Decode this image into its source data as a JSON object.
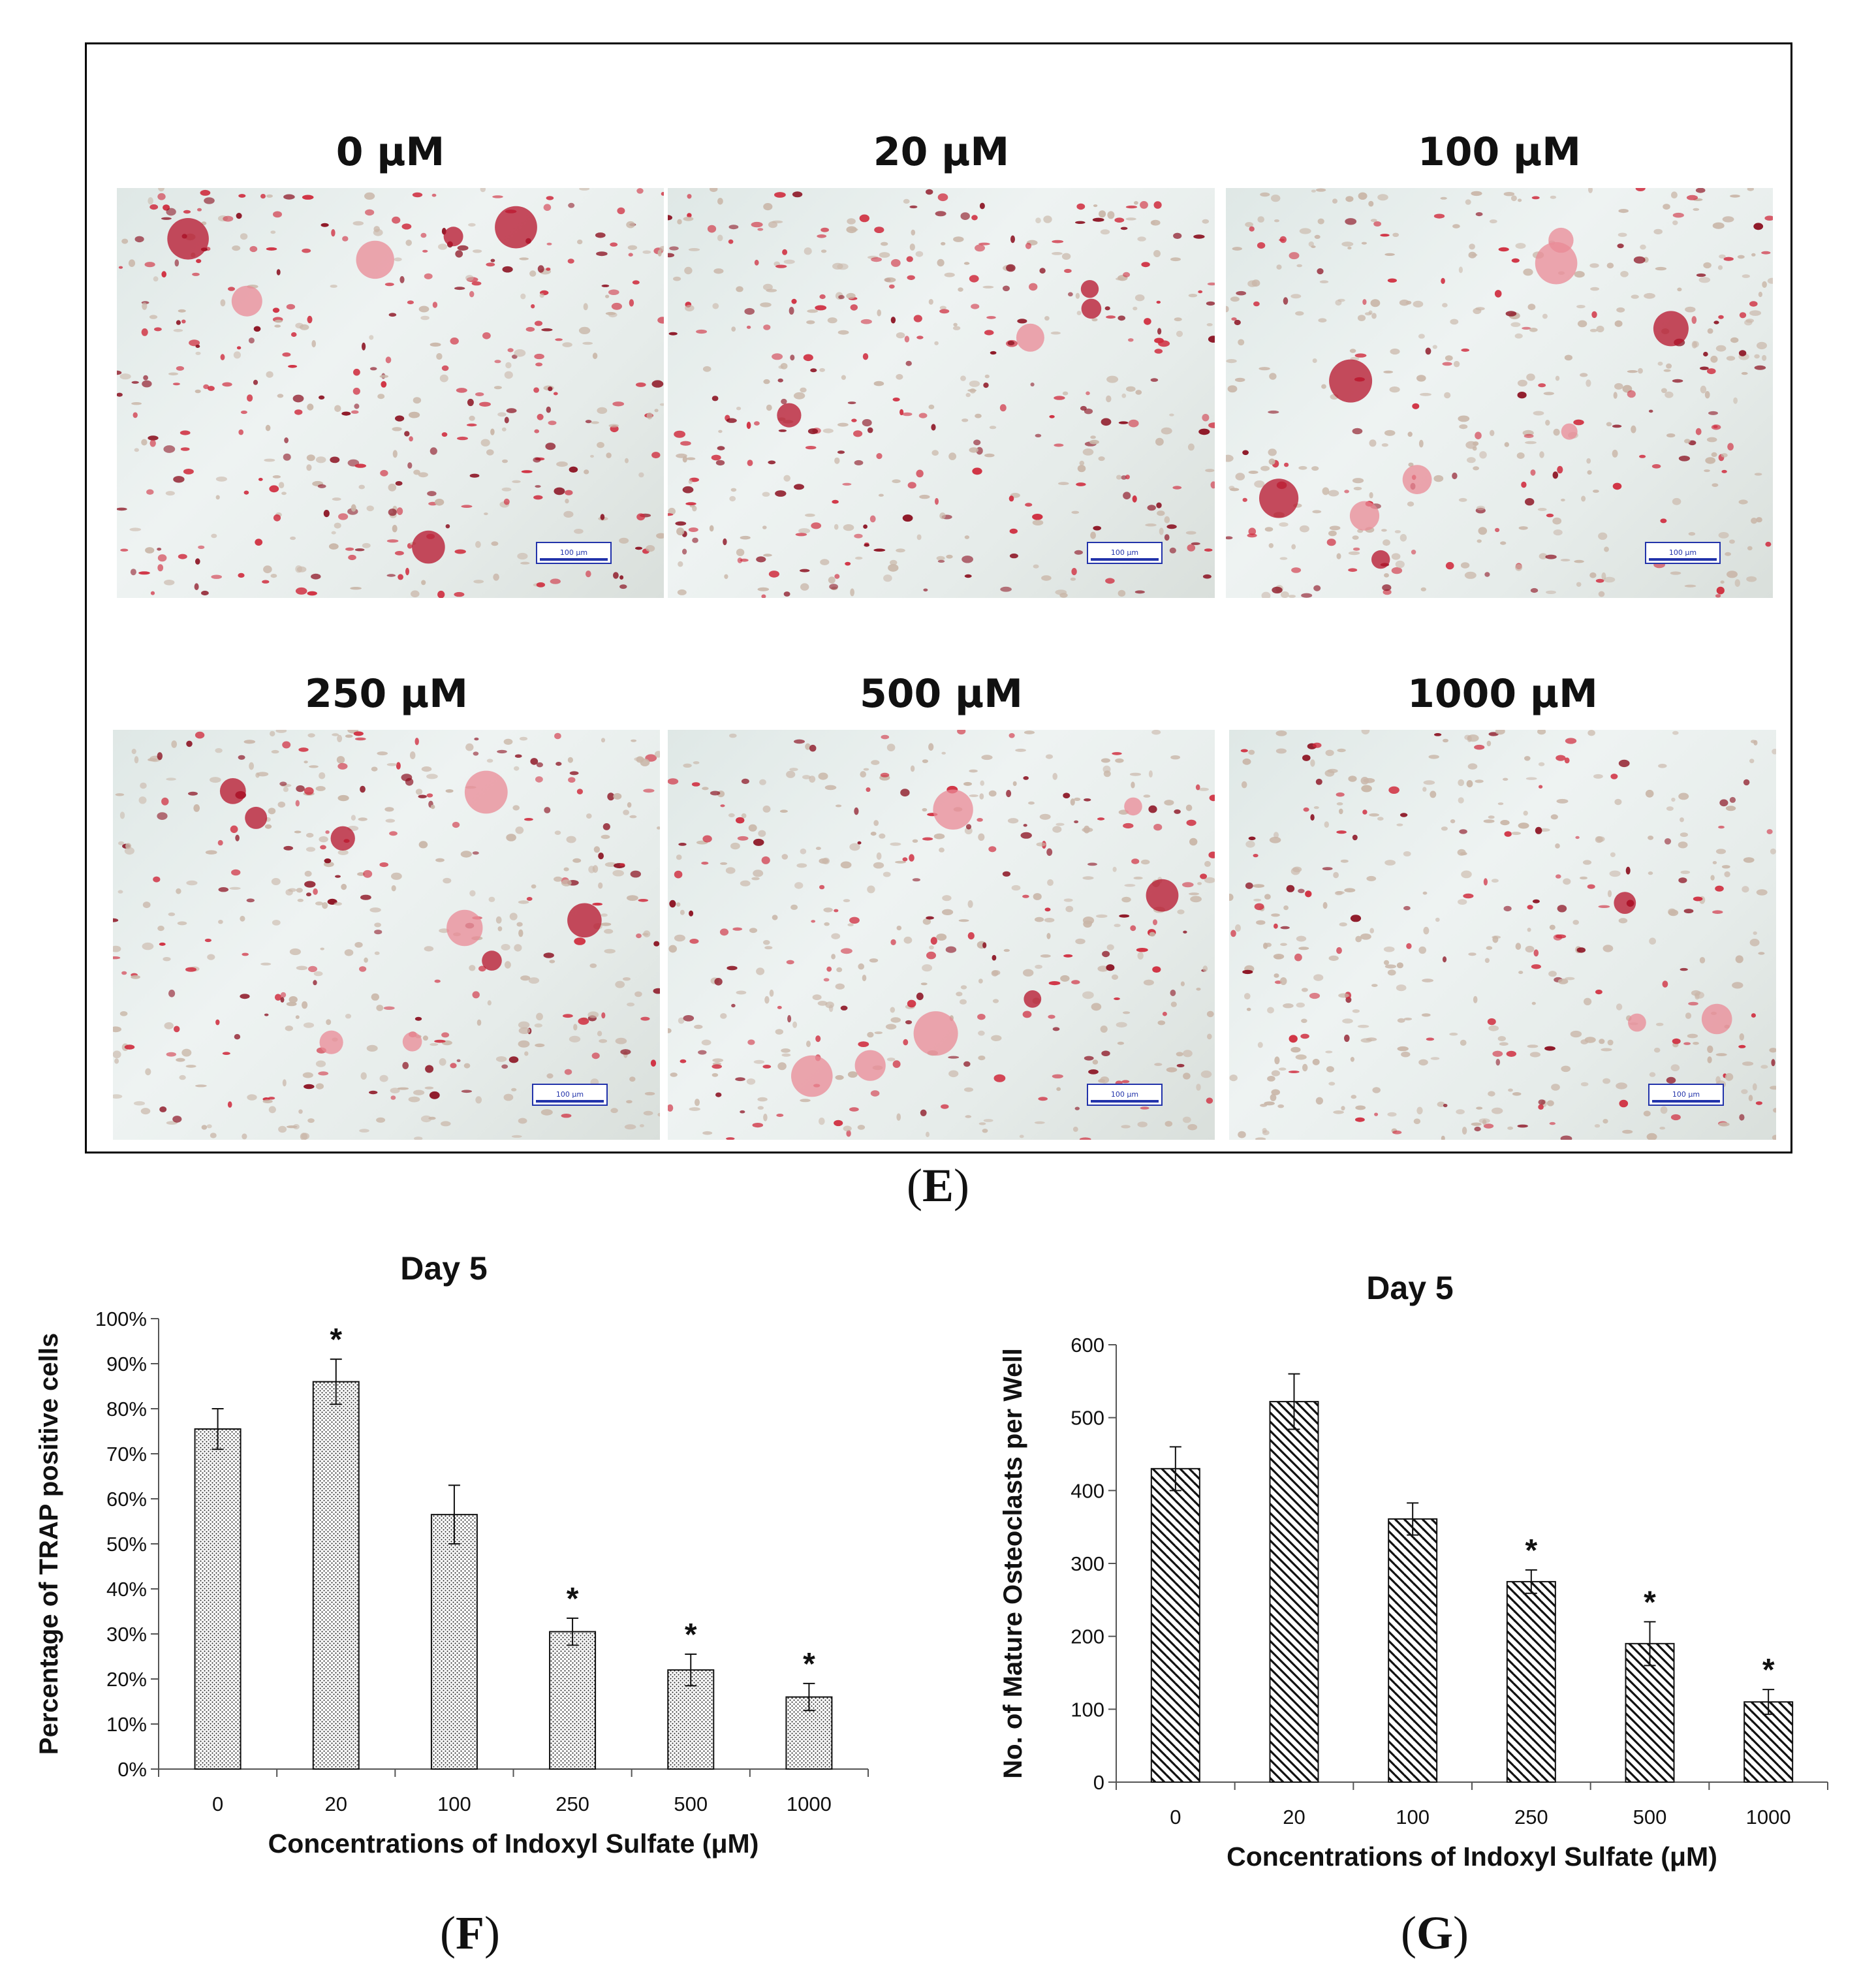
{
  "panel_e": {
    "letter": "E",
    "images": [
      {
        "label": "0 μM",
        "scale_bar": "100 μm"
      },
      {
        "label": "20 μM",
        "scale_bar": "100 μm"
      },
      {
        "label": "100 μM",
        "scale_bar": "100 μm"
      },
      {
        "label": "250 μM",
        "scale_bar": "100 μm"
      },
      {
        "label": "500 μM",
        "scale_bar": "100 μm"
      },
      {
        "label": "1000 μM",
        "scale_bar": "100 μm"
      }
    ]
  },
  "panel_f": {
    "letter": "F"
  },
  "panel_g": {
    "letter": "G"
  },
  "colors": {
    "bar_fill_f": "#d9d9d9",
    "bar_hatch_g": "#111111",
    "stain": "#c8102e",
    "frame": "#000000"
  },
  "chart_data": [
    {
      "type": "bar",
      "title": "Day 5",
      "xlabel": "Concentrations of Indoxyl Sulfate (μM)",
      "ylabel": "Percentage of TRAP positive cells",
      "categories": [
        "0",
        "20",
        "100",
        "250",
        "500",
        "1000"
      ],
      "values": [
        75.5,
        86,
        56.5,
        30.5,
        22,
        16
      ],
      "errors": [
        4.5,
        5,
        6.5,
        3,
        3.5,
        3
      ],
      "significance": [
        "",
        "*",
        "",
        "*",
        "*",
        "*"
      ],
      "ylim": [
        0,
        100
      ],
      "yticks": [
        "0%",
        "10%",
        "20%",
        "30%",
        "40%",
        "50%",
        "60%",
        "70%",
        "80%",
        "90%",
        "100%"
      ],
      "pattern": "dotted",
      "grid": false
    },
    {
      "type": "bar",
      "title": "Day 5",
      "xlabel": "Concentrations of Indoxyl Sulfate (μM)",
      "ylabel": "No. of Mature Osteoclasts per Well",
      "categories": [
        "0",
        "20",
        "100",
        "250",
        "500",
        "1000"
      ],
      "values": [
        430,
        522,
        361,
        275,
        190,
        110
      ],
      "errors": [
        30,
        38,
        22,
        16,
        30,
        17
      ],
      "significance": [
        "",
        "",
        "",
        "*",
        "*",
        "*"
      ],
      "ylim": [
        0,
        600
      ],
      "yticks": [
        "0",
        "100",
        "200",
        "300",
        "400",
        "500",
        "600"
      ],
      "pattern": "diagonal-hatch",
      "grid": false
    }
  ]
}
